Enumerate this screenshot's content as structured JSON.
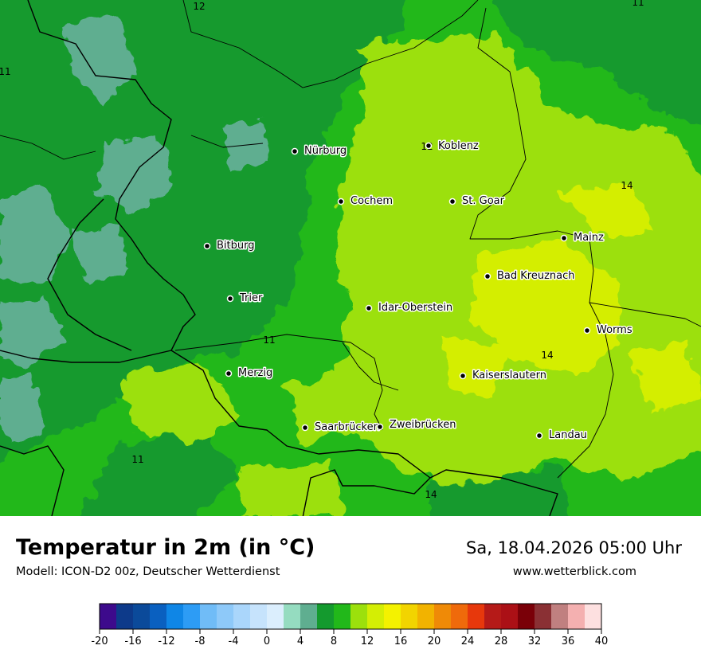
{
  "header": {
    "title": "Temperatur in 2m (in °C)",
    "model": "Modell: ICON-D2 00z, Deutscher Wetterdienst",
    "datetime": "Sa, 18.04.2026 05:00 Uhr",
    "website": "www.wetterblick.com"
  },
  "cities": [
    {
      "name": "Nürburg"
    },
    {
      "name": "Koblenz"
    },
    {
      "name": "Cochem"
    },
    {
      "name": "St. Goar"
    },
    {
      "name": "Bitburg"
    },
    {
      "name": "Mainz"
    },
    {
      "name": "Bad Kreuznach"
    },
    {
      "name": "Trier"
    },
    {
      "name": "Idar-Oberstein"
    },
    {
      "name": "Worms"
    },
    {
      "name": "Merzig"
    },
    {
      "name": "Kaiserslautern"
    },
    {
      "name": "Saarbrücken"
    },
    {
      "name": "Zweibrücken"
    },
    {
      "name": "Landau"
    }
  ],
  "contour_labels": [
    "12",
    "11",
    "11",
    "12",
    "14",
    "11",
    "14",
    "11",
    "14"
  ],
  "legend": {
    "ticks": [
      "-20",
      "-16",
      "-12",
      "-8",
      "-4",
      "0",
      "4",
      "8",
      "12",
      "16",
      "20",
      "24",
      "28",
      "32",
      "36",
      "40"
    ],
    "colors": [
      "#3d0a8c",
      "#0d3a8a",
      "#0b4a9a",
      "#0a60c0",
      "#0f86e6",
      "#2d9cf5",
      "#70bcf7",
      "#8ec9f9",
      "#aad6fb",
      "#c6e3fc",
      "#dbeefd",
      "#95dcc0",
      "#5fae90",
      "#149a2e",
      "#22b81a",
      "#9ce00c",
      "#d4ee04",
      "#f4f200",
      "#f2d400",
      "#f2b300",
      "#ef8a07",
      "#ef6a0b",
      "#e7380c",
      "#b51a18",
      "#ab1016",
      "#7a0008",
      "#8a3034",
      "#c08080",
      "#f4b0b0",
      "#fde0e0"
    ]
  },
  "colors": {
    "dark_green": "#149a2e",
    "green": "#22b81a",
    "light_green": "#9ce00c",
    "yellow_green": "#d4ee04",
    "teal": "#5fae90"
  }
}
